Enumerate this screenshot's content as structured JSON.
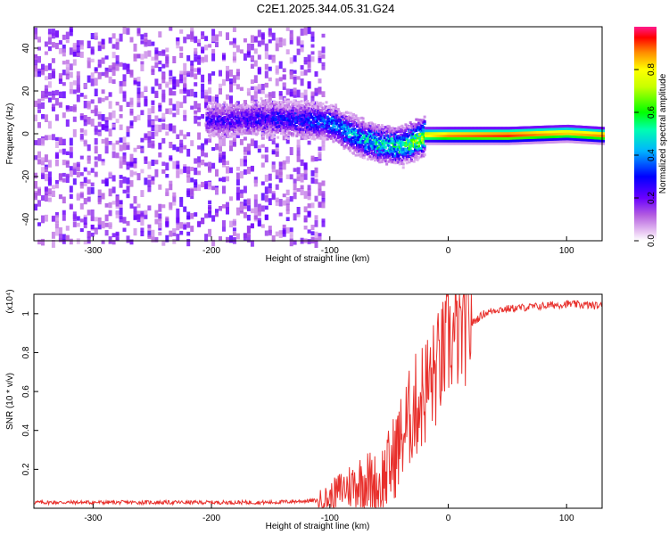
{
  "title": "C2E1.2025.344.05.31.G24",
  "colorbar": {
    "label": "Normalized spectral amplitude",
    "ticks": [
      0.0,
      0.2,
      0.4,
      0.6,
      0.8
    ]
  },
  "chart_data": [
    {
      "type": "heatmap",
      "xlabel": "Height of straight line (km)",
      "ylabel": "Frequency (Hz)",
      "xlim": [
        -350,
        130
      ],
      "ylim": [
        -50,
        50
      ],
      "xticks": [
        -300,
        -200,
        -100,
        0,
        100
      ],
      "yticks": [
        -40,
        -20,
        0,
        20,
        40
      ],
      "grid": false,
      "colorscale": "rainbow (violet 0.0 → red ~0.95)",
      "description_points": [
        {
          "x": -350,
          "note": "scattered noise across all frequencies up to x≈-105"
        },
        {
          "x": -200,
          "freq_center": 7,
          "amplitude": 0.25
        },
        {
          "x": -150,
          "freq_center": 8,
          "amplitude": 0.3
        },
        {
          "x": -100,
          "freq_center": 6,
          "amplitude": 0.4
        },
        {
          "x": -80,
          "freq_center": 0,
          "amplitude": 0.5
        },
        {
          "x": -60,
          "freq_center": -4,
          "amplitude": 0.55
        },
        {
          "x": -40,
          "freq_center": -5,
          "amplitude": 0.6
        },
        {
          "x": -20,
          "freq_center": 0,
          "amplitude": 0.8
        },
        {
          "x": 0,
          "freq_center": 0,
          "amplitude": 0.9
        },
        {
          "x": 50,
          "freq_center": 0,
          "amplitude": 0.95
        },
        {
          "x": 100,
          "freq_center": 1,
          "amplitude": 0.85
        },
        {
          "x": 130,
          "freq_center": 0,
          "amplitude": 0.9
        }
      ]
    },
    {
      "type": "line",
      "xlabel": "Height of straight line (km)",
      "ylabel": "SNR (10 * v/v)",
      "yscale_label": "(x10⁴)",
      "xlim": [
        -350,
        130
      ],
      "ylim": [
        0,
        1.1
      ],
      "xticks": [
        -300,
        -200,
        -100,
        0,
        100
      ],
      "yticks": [
        0.2,
        0.4,
        0.6,
        0.8,
        1.0
      ],
      "grid": false,
      "series": [
        {
          "color": "#e8302c",
          "x": [
            -350,
            -300,
            -250,
            -200,
            -150,
            -110,
            -100,
            -90,
            -80,
            -70,
            -60,
            -50,
            -40,
            -30,
            -20,
            -10,
            0,
            10,
            20,
            30,
            40,
            60,
            80,
            100,
            130
          ],
          "y": [
            0.03,
            0.03,
            0.03,
            0.03,
            0.03,
            0.04,
            0.05,
            0.1,
            0.12,
            0.15,
            0.1,
            0.2,
            0.35,
            0.5,
            0.6,
            0.7,
            0.85,
            0.9,
            0.95,
            1.0,
            1.02,
            1.03,
            1.04,
            1.05,
            1.04
          ]
        }
      ]
    }
  ]
}
